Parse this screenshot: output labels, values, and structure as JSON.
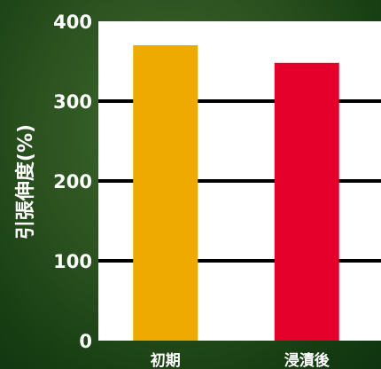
{
  "chart_data": {
    "type": "bar",
    "categories": [
      "初期",
      "浸漬後"
    ],
    "values": [
      370,
      348
    ],
    "ylabel": "引張伸度(%)",
    "ylim": [
      0,
      400
    ],
    "yticks": [
      0,
      100,
      200,
      300,
      400
    ],
    "grid": true,
    "colors": {
      "bars": [
        "#eeaa00",
        "#e4002b"
      ],
      "plot_background": "#ffffff",
      "gridline": "#000000",
      "text": "#ffffff"
    }
  }
}
